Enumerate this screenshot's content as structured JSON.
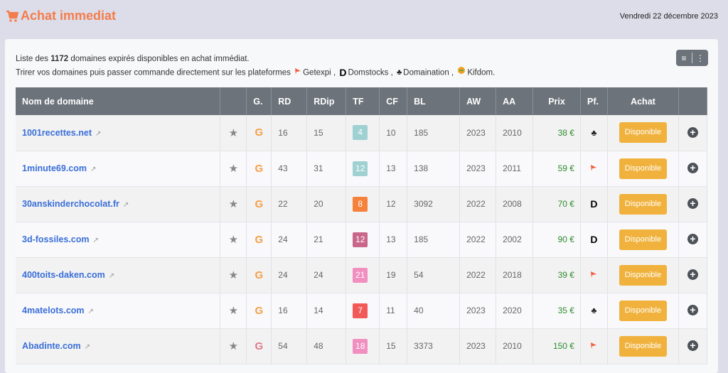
{
  "header": {
    "title": "Achat immediat",
    "date": "Vendredi 22 décembre 2023",
    "icon": "shopping-cart-icon"
  },
  "info": {
    "line1_prefix": "Liste des ",
    "count": "1172",
    "line1_suffix": " domaines expirés disponibles en achat immédiat.",
    "line2_prefix": "Trirer vos domaines puis passer commande directement sur les plateformes",
    "platforms": [
      "Getexpi",
      "Domstocks",
      "Domaination",
      "Kifdom."
    ]
  },
  "toolbar": {
    "icons": [
      "filter-icon",
      "more-vertical-icon"
    ]
  },
  "colors": {
    "accent": "#f47c4c",
    "header": "#6c737a",
    "button": "#f0b23c",
    "link": "#3a6fd8",
    "price": "#2e8b2e"
  },
  "table": {
    "columns": [
      "Nom de domaine",
      "",
      "G.",
      "RD",
      "RDip",
      "TF",
      "CF",
      "BL",
      "AW",
      "AA",
      "Prix",
      "Pf.",
      "Achat",
      ""
    ],
    "rows": [
      {
        "domain": "1001recettes.net",
        "g_color": "#f5a04a",
        "rd": "16",
        "rdip": "15",
        "tf": "4",
        "tf_color": "#9fd0d2",
        "cf": "10",
        "bl": "185",
        "aw": "2023",
        "aa": "2010",
        "prix": "38 €",
        "pf": "domaination",
        "achat": "Disponible"
      },
      {
        "domain": "1minute69.com",
        "g_color": "#f5a04a",
        "rd": "43",
        "rdip": "31",
        "tf": "12",
        "tf_color": "#9fd0d2",
        "cf": "13",
        "bl": "138",
        "aw": "2023",
        "aa": "2011",
        "prix": "59 €",
        "pf": "getexpi",
        "achat": "Disponible"
      },
      {
        "domain": "30anskinderchocolat.fr",
        "g_color": "#f5a04a",
        "rd": "22",
        "rdip": "20",
        "tf": "8",
        "tf_color": "#f5813a",
        "cf": "12",
        "bl": "3092",
        "aw": "2022",
        "aa": "2008",
        "prix": "70 €",
        "pf": "domstocks",
        "achat": "Disponible"
      },
      {
        "domain": "3d-fossiles.com",
        "g_color": "#f5a04a",
        "rd": "24",
        "rdip": "21",
        "tf": "12",
        "tf_color": "#c9678a",
        "cf": "13",
        "bl": "185",
        "aw": "2022",
        "aa": "2002",
        "prix": "90 €",
        "pf": "domstocks",
        "achat": "Disponible"
      },
      {
        "domain": "400toits-daken.com",
        "g_color": "#f5a04a",
        "rd": "24",
        "rdip": "24",
        "tf": "21",
        "tf_color": "#f08fc0",
        "cf": "19",
        "bl": "54",
        "aw": "2022",
        "aa": "2018",
        "prix": "39 €",
        "pf": "getexpi",
        "achat": "Disponible"
      },
      {
        "domain": "4matelots.com",
        "g_color": "#f5a04a",
        "rd": "16",
        "rdip": "14",
        "tf": "7",
        "tf_color": "#f25a5a",
        "cf": "11",
        "bl": "40",
        "aw": "2023",
        "aa": "2020",
        "prix": "35 €",
        "pf": "domaination",
        "achat": "Disponible"
      },
      {
        "domain": "Abadinte.com",
        "g_color": "#e07a8a",
        "rd": "54",
        "rdip": "48",
        "tf": "18",
        "tf_color": "#f08fc0",
        "cf": "15",
        "bl": "3373",
        "aw": "2023",
        "aa": "2010",
        "prix": "150 €",
        "pf": "getexpi",
        "achat": "Disponible"
      }
    ]
  }
}
